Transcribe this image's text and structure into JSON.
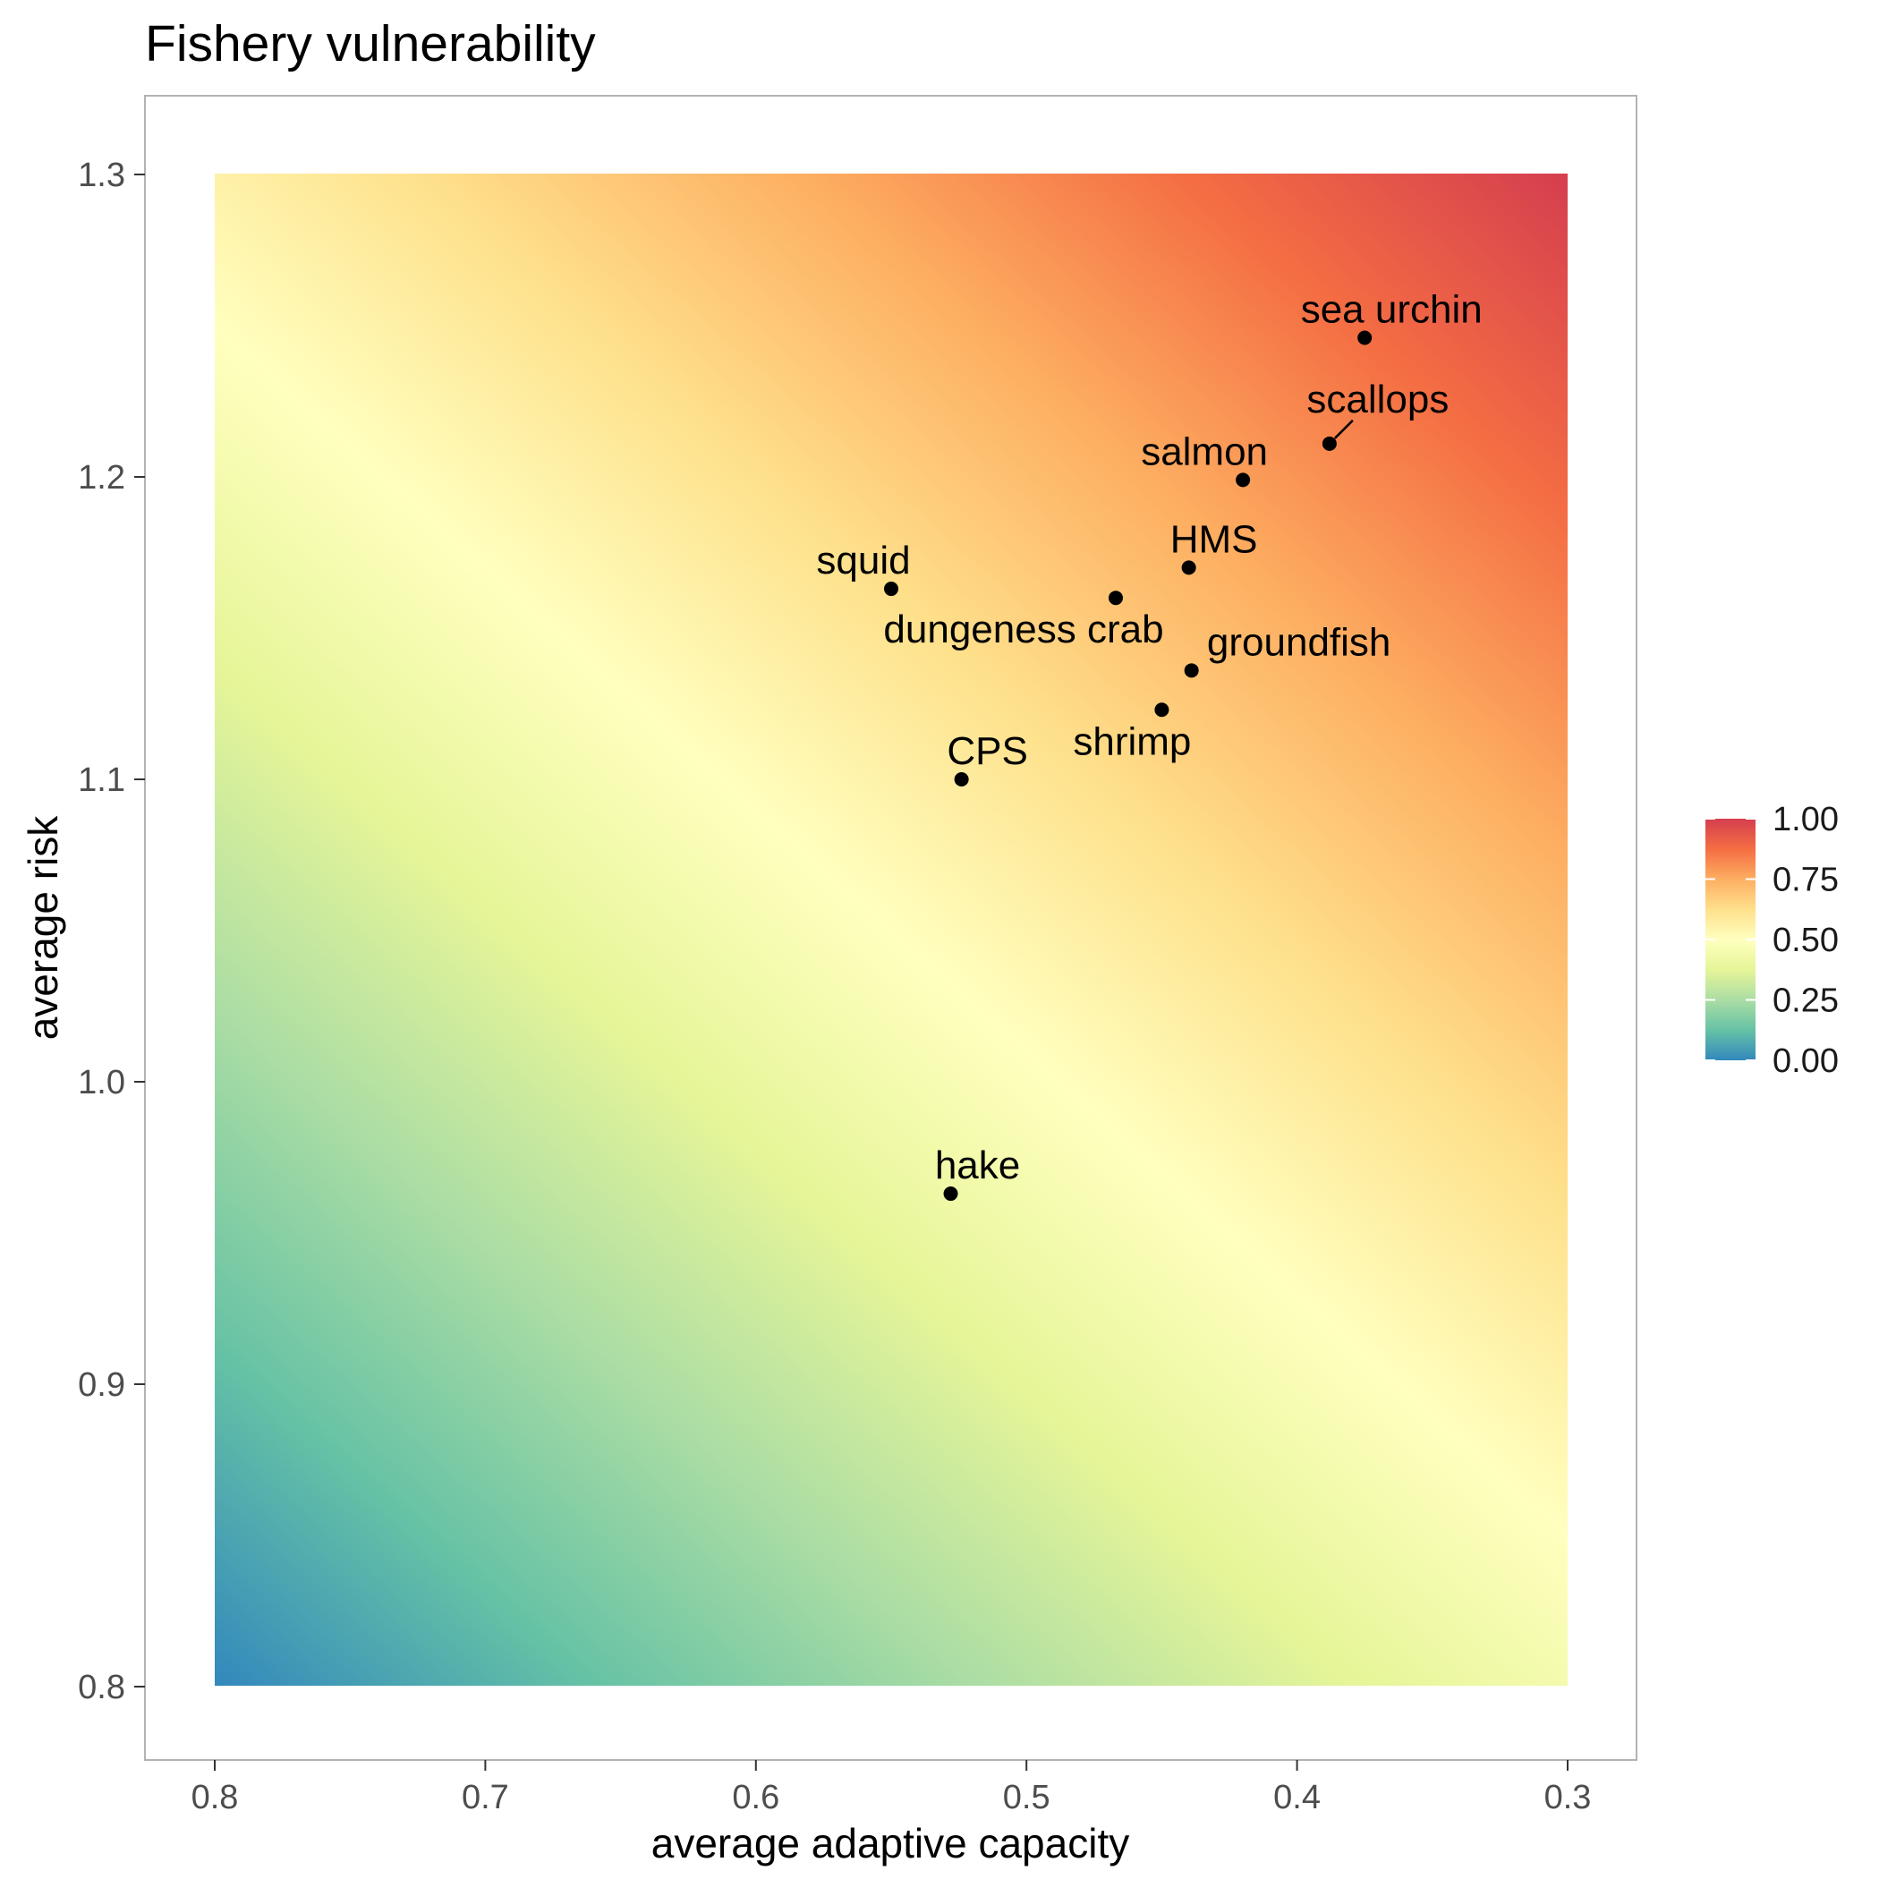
{
  "chart_data": {
    "type": "scatter",
    "title": "Fishery vulnerability",
    "xlabel": "average adaptive capacity",
    "ylabel": "average risk",
    "x_reversed": true,
    "xlim": [
      0.8,
      0.3
    ],
    "ylim": [
      0.8,
      1.3
    ],
    "x_ticks": [
      0.8,
      0.7,
      0.6,
      0.5,
      0.4,
      0.3
    ],
    "x_tick_labels": [
      "0.8",
      "0.7",
      "0.6",
      "0.5",
      "0.4",
      "0.3"
    ],
    "y_ticks": [
      0.8,
      0.9,
      1.0,
      1.1,
      1.2,
      1.3
    ],
    "y_tick_labels": [
      "0.8",
      "0.9",
      "1.0",
      "1.1",
      "1.2",
      "1.3"
    ],
    "grid": false,
    "background": "gradient fill of vulnerability from 0 (bottom-left) to 1 (top-right), spectral palette",
    "colorbar": {
      "range": [
        0,
        1
      ],
      "tick_values": [
        0,
        0.25,
        0.5,
        0.75,
        1
      ],
      "tick_labels": [
        "0.00",
        "0.25",
        "0.50",
        "0.75",
        "1.00"
      ],
      "placement": "right",
      "palette": [
        "#3288bd",
        "#66c2a5",
        "#abdda4",
        "#e6f598",
        "#ffffbf",
        "#fee08b",
        "#fdae61",
        "#f46d43",
        "#d53e4f"
      ]
    },
    "points": [
      {
        "label": "sea urchin",
        "x": 0.375,
        "y": 1.246
      },
      {
        "label": "scallops",
        "x": 0.388,
        "y": 1.211
      },
      {
        "label": "salmon",
        "x": 0.42,
        "y": 1.199
      },
      {
        "label": "HMS",
        "x": 0.44,
        "y": 1.17
      },
      {
        "label": "squid",
        "x": 0.55,
        "y": 1.163
      },
      {
        "label": "dungeness crab",
        "x": 0.467,
        "y": 1.16
      },
      {
        "label": "groundfish",
        "x": 0.439,
        "y": 1.136
      },
      {
        "label": "shrimp",
        "x": 0.45,
        "y": 1.123
      },
      {
        "label": "CPS",
        "x": 0.524,
        "y": 1.1
      },
      {
        "label": "hake",
        "x": 0.528,
        "y": 0.963
      }
    ],
    "point_color": "#000000"
  }
}
